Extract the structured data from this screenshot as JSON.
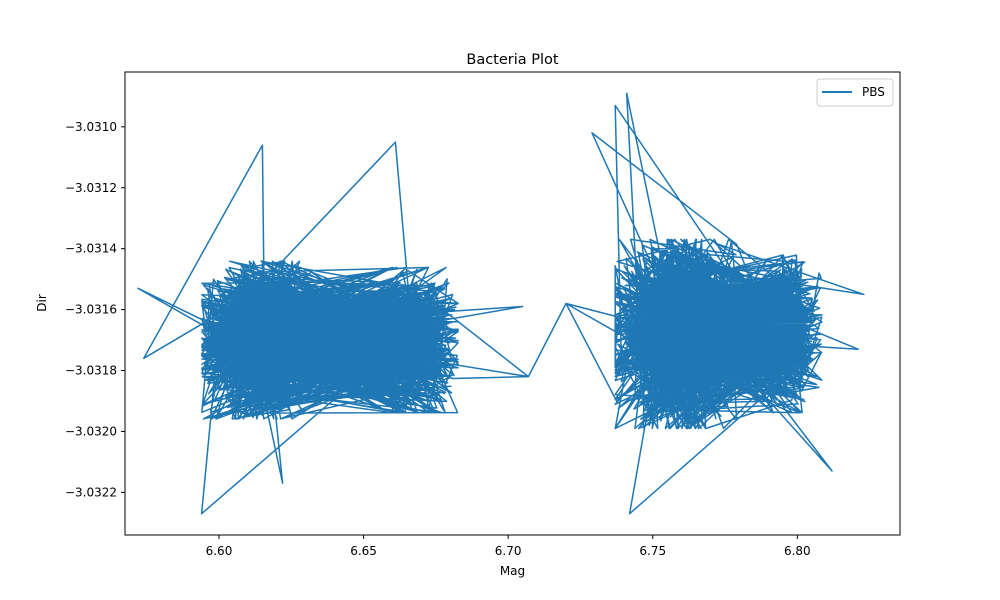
{
  "chart_data": {
    "type": "line",
    "title": "Bacteria Plot",
    "xlabel": "Mag",
    "ylabel": "Dir",
    "xlim": [
      6.5675,
      6.8355
    ],
    "ylim": [
      -3.03234,
      -3.03082
    ],
    "x_ticks": [
      "6.60",
      "6.65",
      "6.70",
      "6.75",
      "6.80"
    ],
    "x_tick_values": [
      6.6,
      6.65,
      6.7,
      6.75,
      6.8
    ],
    "y_ticks": [
      "−3.0310",
      "−3.0312",
      "−3.0314",
      "−3.0316",
      "−3.0318",
      "−3.0320",
      "−3.0322"
    ],
    "y_tick_values": [
      -3.031,
      -3.0312,
      -3.0314,
      -3.0316,
      -3.0318,
      -3.032,
      -3.0322
    ],
    "grid": false,
    "legend_position": "upper right",
    "series": [
      {
        "name": "PBS",
        "color": "#1f77b4",
        "clusters": [
          {
            "x_center": 6.613,
            "x_spread": 0.018,
            "y_center": -3.0317,
            "y_spread": 0.00025,
            "points": 1400
          },
          {
            "x_center": 6.668,
            "x_spread": 0.014,
            "y_center": -3.0317,
            "y_spread": 0.00023,
            "points": 800
          },
          {
            "x_center": 6.758,
            "x_spread": 0.02,
            "y_center": -3.03168,
            "y_spread": 0.0003,
            "points": 1500
          },
          {
            "x_center": 6.798,
            "x_spread": 0.01,
            "y_center": -3.03168,
            "y_spread": 0.00025,
            "points": 500
          }
        ],
        "sample_points": [
          [
            6.572,
            -3.03153
          ],
          [
            6.574,
            -3.03176
          ],
          [
            6.594,
            -3.03227
          ],
          [
            6.615,
            -3.03106
          ],
          [
            6.622,
            -3.03217
          ],
          [
            6.661,
            -3.03105
          ],
          [
            6.707,
            -3.03182
          ],
          [
            6.705,
            -3.03159
          ],
          [
            6.72,
            -3.03158
          ],
          [
            6.729,
            -3.03102
          ],
          [
            6.737,
            -3.03093
          ],
          [
            6.741,
            -3.03089
          ],
          [
            6.742,
            -3.03227
          ],
          [
            6.812,
            -3.03213
          ],
          [
            6.823,
            -3.03155
          ],
          [
            6.821,
            -3.03173
          ]
        ]
      }
    ]
  }
}
